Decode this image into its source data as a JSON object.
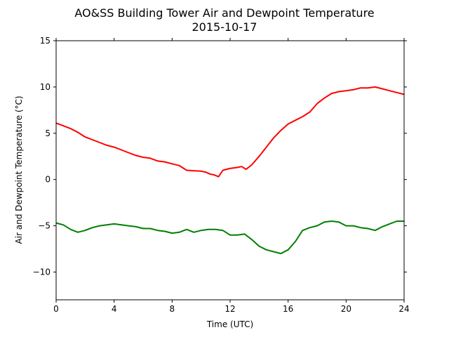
{
  "chart_data": {
    "type": "line",
    "title": "AO&SS Building Tower Air and Dewpoint Temperature",
    "subtitle": "2015-10-17",
    "xlabel": "Time (UTC)",
    "ylabel": "Air and Dewpoint Temperature (°C)",
    "xlim": [
      0,
      24
    ],
    "ylim": [
      -13,
      15
    ],
    "xticks": [
      0,
      4,
      8,
      12,
      16,
      20,
      24
    ],
    "yticks": [
      -10,
      -5,
      0,
      5,
      10,
      15
    ],
    "grid": false,
    "legend": "none",
    "series": [
      {
        "color": "#ff0000",
        "x": [
          0,
          0.5,
          1,
          1.5,
          2,
          2.5,
          3,
          3.5,
          4,
          4.5,
          5,
          5.5,
          6,
          6.5,
          7,
          7.5,
          8,
          8.5,
          9,
          9.5,
          10,
          10.3,
          10.6,
          10.9,
          11.2,
          11.5,
          12,
          12.5,
          12.8,
          13.1,
          13.5,
          14,
          14.5,
          15,
          15.5,
          16,
          16.5,
          17,
          17.5,
          18,
          18.5,
          19,
          19.5,
          20,
          20.5,
          21,
          21.5,
          22,
          22.5,
          23,
          23.5,
          24
        ],
        "values": [
          6.1,
          5.8,
          5.5,
          5.1,
          4.6,
          4.3,
          4.0,
          3.7,
          3.5,
          3.2,
          2.9,
          2.6,
          2.4,
          2.3,
          2.0,
          1.9,
          1.7,
          1.5,
          1.0,
          0.95,
          0.9,
          0.8,
          0.6,
          0.5,
          0.3,
          1.0,
          1.2,
          1.3,
          1.4,
          1.1,
          1.6,
          2.5,
          3.5,
          4.5,
          5.3,
          6.0,
          6.4,
          6.8,
          7.3,
          8.2,
          8.8,
          9.3,
          9.5,
          9.6,
          9.7,
          9.9,
          9.9,
          10.0,
          9.8,
          9.6,
          9.4,
          9.2
        ]
      },
      {
        "color": "#008000",
        "x": [
          0,
          0.5,
          1,
          1.5,
          2,
          2.5,
          3,
          3.5,
          4,
          4.5,
          5,
          5.5,
          6,
          6.5,
          7,
          7.5,
          8,
          8.5,
          9,
          9.5,
          10,
          10.5,
          11,
          11.5,
          12,
          12.5,
          13,
          13.5,
          14,
          14.5,
          15,
          15.5,
          16,
          16.5,
          17,
          17.5,
          18,
          18.5,
          19,
          19.5,
          20,
          20.5,
          21,
          21.5,
          22,
          22.5,
          23,
          23.5,
          24
        ],
        "values": [
          -4.7,
          -4.9,
          -5.4,
          -5.7,
          -5.5,
          -5.2,
          -5.0,
          -4.9,
          -4.8,
          -4.9,
          -5.0,
          -5.1,
          -5.3,
          -5.3,
          -5.5,
          -5.6,
          -5.8,
          -5.7,
          -5.4,
          -5.7,
          -5.5,
          -5.4,
          -5.4,
          -5.5,
          -6.0,
          -6.0,
          -5.9,
          -6.5,
          -7.2,
          -7.6,
          -7.8,
          -8.0,
          -7.6,
          -6.7,
          -5.5,
          -5.2,
          -5.0,
          -4.6,
          -4.5,
          -4.6,
          -5.0,
          -5.0,
          -5.2,
          -5.3,
          -5.5,
          -5.1,
          -4.8,
          -4.5,
          -4.5
        ]
      }
    ]
  }
}
